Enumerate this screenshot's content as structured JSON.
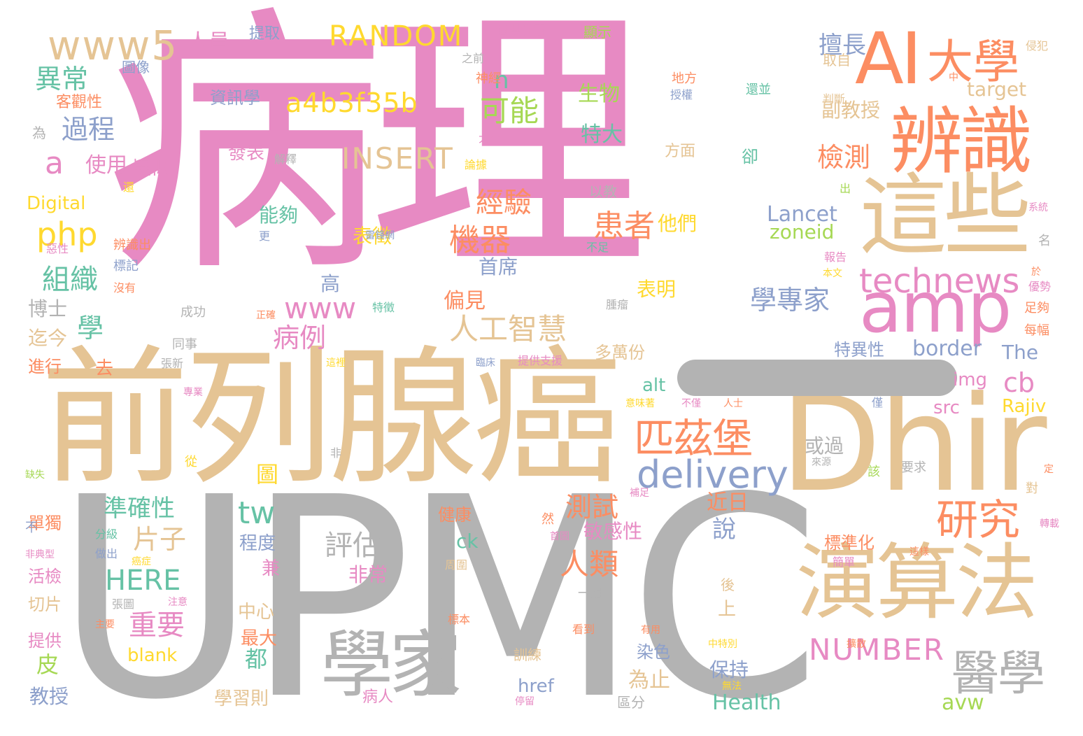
{
  "colors": {
    "pink": "#e78ac3",
    "tan": "#e5c494",
    "gray": "#b3b3b3",
    "orange": "#fc8d62",
    "blue": "#8da0cb",
    "green": "#66c2a5",
    "lime": "#a6d854",
    "yellow": "#ffd92f"
  },
  "words": [
    {
      "text": "病理",
      "color": "pink"
    },
    {
      "text": "UPMC",
      "color": "gray"
    },
    {
      "text": "前列腺癌",
      "color": "tan"
    },
    {
      "text": "Dhir",
      "color": "tan"
    },
    {
      "text": "這些",
      "color": "tan"
    },
    {
      "text": "辨識",
      "color": "orange"
    },
    {
      "text": "AI",
      "color": "orange"
    },
    {
      "text": "大學",
      "color": "orange"
    },
    {
      "text": "amp",
      "color": "pink"
    },
    {
      "text": "演算法",
      "color": "tan"
    },
    {
      "text": "學家",
      "color": "gray"
    },
    {
      "text": "匹茲堡",
      "color": "orange"
    },
    {
      "text": "醫學",
      "color": "gray"
    },
    {
      "text": "研究",
      "color": "orange"
    },
    {
      "text": "delivery",
      "color": "blue"
    },
    {
      "text": "technews",
      "color": "pink"
    },
    {
      "text": "www5",
      "color": "tan"
    },
    {
      "text": "RANDOM",
      "color": "yellow"
    },
    {
      "text": "a4b3f35b",
      "color": "yellow"
    },
    {
      "text": "INSERT",
      "color": "tan"
    },
    {
      "text": "NUMBER",
      "color": "pink"
    },
    {
      "text": "HERE",
      "color": "green"
    },
    {
      "text": "www",
      "color": "pink"
    },
    {
      "text": "php",
      "color": "yellow"
    },
    {
      "text": "人工智慧",
      "color": "tan"
    },
    {
      "text": "學專家",
      "color": "blue"
    },
    {
      "text": "患者",
      "color": "orange"
    },
    {
      "text": "機器",
      "color": "orange"
    },
    {
      "text": "經驗",
      "color": "orange"
    },
    {
      "text": "可能",
      "color": "lime"
    },
    {
      "text": "檢測",
      "color": "orange"
    },
    {
      "text": "擅長",
      "color": "blue"
    },
    {
      "text": "人類",
      "color": "orange"
    },
    {
      "text": "測試",
      "color": "orange"
    },
    {
      "text": "評估",
      "color": "gray"
    },
    {
      "text": "重要",
      "color": "pink"
    },
    {
      "text": "片子",
      "color": "tan"
    },
    {
      "text": "準確性",
      "color": "green"
    },
    {
      "text": "異常",
      "color": "green"
    },
    {
      "text": "過程",
      "color": "blue"
    },
    {
      "text": "組織",
      "color": "green"
    },
    {
      "text": "病例",
      "color": "pink"
    },
    {
      "text": "tw",
      "color": "green"
    },
    {
      "text": "cb",
      "color": "pink"
    },
    {
      "text": "border",
      "color": "blue"
    },
    {
      "text": "Lancet",
      "color": "blue"
    },
    {
      "text": "zoneid",
      "color": "lime"
    },
    {
      "text": "The",
      "color": "blue"
    },
    {
      "text": "Rajiv",
      "color": "yellow"
    },
    {
      "text": "Health",
      "color": "green"
    },
    {
      "text": "avw",
      "color": "lime"
    },
    {
      "text": "target",
      "color": "tan"
    },
    {
      "text": "blank",
      "color": "yellow"
    },
    {
      "text": "Digital",
      "color": "yellow"
    },
    {
      "text": "alt",
      "color": "green"
    },
    {
      "text": "img",
      "color": "pink"
    },
    {
      "text": "src",
      "color": "pink"
    },
    {
      "text": "href",
      "color": "blue"
    },
    {
      "text": "ck",
      "color": "green"
    },
    {
      "text": "a",
      "color": "pink"
    },
    {
      "text": "n",
      "color": "green"
    },
    {
      "text": "學",
      "color": "green"
    },
    {
      "text": "皮",
      "color": "lime"
    },
    {
      "text": "都",
      "color": "green"
    },
    {
      "text": "高",
      "color": "blue"
    },
    {
      "text": "說",
      "color": "blue"
    },
    {
      "text": "圖",
      "color": "yellow"
    },
    {
      "text": "人員",
      "color": "pink"
    },
    {
      "text": "提取",
      "color": "blue"
    },
    {
      "text": "資訊學",
      "color": "blue"
    },
    {
      "text": "生物",
      "color": "lime"
    },
    {
      "text": "特大",
      "color": "green"
    },
    {
      "text": "發表",
      "color": "pink"
    },
    {
      "text": "使用",
      "color": "pink"
    },
    {
      "text": "疑似",
      "color": "pink"
    },
    {
      "text": "能夠",
      "color": "green"
    },
    {
      "text": "表徵",
      "color": "yellow"
    },
    {
      "text": "首席",
      "color": "blue"
    },
    {
      "text": "偏見",
      "color": "orange"
    },
    {
      "text": "表明",
      "color": "yellow"
    },
    {
      "text": "他們",
      "color": "yellow"
    },
    {
      "text": "博士",
      "color": "gray"
    },
    {
      "text": "迄今",
      "color": "tan"
    },
    {
      "text": "進行",
      "color": "orange"
    },
    {
      "text": "去",
      "color": "orange"
    },
    {
      "text": "多萬份",
      "color": "tan"
    },
    {
      "text": "近日",
      "color": "orange"
    },
    {
      "text": "或過",
      "color": "gray"
    },
    {
      "text": "非常",
      "color": "pink"
    },
    {
      "text": "程度",
      "color": "blue"
    },
    {
      "text": "兼",
      "color": "pink"
    },
    {
      "text": "中心",
      "color": "tan"
    },
    {
      "text": "最大",
      "color": "orange"
    },
    {
      "text": "學習則",
      "color": "tan"
    },
    {
      "text": "保持",
      "color": "blue"
    },
    {
      "text": "為止",
      "color": "tan"
    },
    {
      "text": "染色",
      "color": "blue"
    },
    {
      "text": "教授",
      "color": "blue"
    },
    {
      "text": "敏感性",
      "color": "pink"
    },
    {
      "text": "副教授",
      "color": "tan"
    },
    {
      "text": "特異性",
      "color": "blue"
    },
    {
      "text": "標準化",
      "color": "orange"
    },
    {
      "text": "健康",
      "color": "orange"
    },
    {
      "text": "活檢",
      "color": "pink"
    },
    {
      "text": "單獨",
      "color": "orange"
    },
    {
      "text": "切片",
      "color": "tan"
    },
    {
      "text": "提供",
      "color": "pink"
    },
    {
      "text": "客觀性",
      "color": "orange"
    },
    {
      "text": "圖像",
      "color": "blue"
    },
    {
      "text": "上",
      "color": "tan"
    },
    {
      "text": "後",
      "color": "tan"
    },
    {
      "text": "卻",
      "color": "green"
    },
    {
      "text": "方面",
      "color": "tan"
    },
    {
      "text": "顯示",
      "color": "lime"
    },
    {
      "text": "值得注意",
      "color": "pink"
    },
    {
      "text": "侵犯",
      "color": "tan"
    },
    {
      "text": "判斷",
      "color": "tan"
    },
    {
      "text": "取自",
      "color": "tan"
    },
    {
      "text": "地方",
      "color": "orange"
    },
    {
      "text": "授權",
      "color": "blue"
    },
    {
      "text": "還並",
      "color": "green"
    },
    {
      "text": "之前",
      "color": "gray"
    },
    {
      "text": "神經",
      "color": "orange"
    },
    {
      "text": "大小",
      "color": "pink"
    },
    {
      "text": "論據",
      "color": "yellow"
    },
    {
      "text": "解釋",
      "color": "gray"
    },
    {
      "text": "以教",
      "color": "gray"
    },
    {
      "text": "為",
      "color": "gray"
    },
    {
      "text": "還",
      "color": "yellow"
    },
    {
      "text": "辨識出",
      "color": "orange"
    },
    {
      "text": "標記",
      "color": "blue"
    },
    {
      "text": "沒有",
      "color": "orange"
    },
    {
      "text": "惡性",
      "color": "pink"
    },
    {
      "text": "雷鋒網",
      "color": "blue"
    },
    {
      "text": "更",
      "color": "blue"
    },
    {
      "text": "特徵",
      "color": "green"
    },
    {
      "text": "正確",
      "color": "orange"
    },
    {
      "text": "成功",
      "color": "gray"
    },
    {
      "text": "同事",
      "color": "gray"
    },
    {
      "text": "張新",
      "color": "gray"
    },
    {
      "text": "這裡",
      "color": "yellow"
    },
    {
      "text": "臨床",
      "color": "blue"
    },
    {
      "text": "提供支援",
      "color": "pink"
    },
    {
      "text": "腫瘤",
      "color": "gray"
    },
    {
      "text": "不足",
      "color": "green"
    },
    {
      "text": "出",
      "color": "lime"
    },
    {
      "text": "報告",
      "color": "pink"
    },
    {
      "text": "本文",
      "color": "yellow"
    },
    {
      "text": "於",
      "color": "orange"
    },
    {
      "text": "系統",
      "color": "pink"
    },
    {
      "text": "名",
      "color": "gray"
    },
    {
      "text": "優勢",
      "color": "pink"
    },
    {
      "text": "足夠",
      "color": "orange"
    },
    {
      "text": "每幅",
      "color": "orange"
    },
    {
      "text": "中",
      "color": "orange"
    },
    {
      "text": "專業",
      "color": "pink"
    },
    {
      "text": "意味著",
      "color": "yellow"
    },
    {
      "text": "不僅",
      "color": "pink"
    },
    {
      "text": "人士",
      "color": "orange"
    },
    {
      "text": "非",
      "color": "gray"
    },
    {
      "text": "從",
      "color": "yellow"
    },
    {
      "text": "缺失",
      "color": "lime"
    },
    {
      "text": "不",
      "color": "blue"
    },
    {
      "text": "分級",
      "color": "green"
    },
    {
      "text": "做出",
      "color": "blue"
    },
    {
      "text": "癌症",
      "color": "yellow"
    },
    {
      "text": "非典型",
      "color": "pink"
    },
    {
      "text": "然",
      "color": "orange"
    },
    {
      "text": "首圖",
      "color": "pink"
    },
    {
      "text": "周圍",
      "color": "tan"
    },
    {
      "text": "一組",
      "color": "gray"
    },
    {
      "text": "張圖",
      "color": "gray"
    },
    {
      "text": "注意",
      "color": "pink"
    },
    {
      "text": "主要",
      "color": "orange"
    },
    {
      "text": "標本",
      "color": "orange"
    },
    {
      "text": "看到",
      "color": "orange"
    },
    {
      "text": "有用",
      "color": "orange"
    },
    {
      "text": "訓練",
      "color": "tan"
    },
    {
      "text": "停留",
      "color": "pink"
    },
    {
      "text": "病人",
      "color": "pink"
    },
    {
      "text": "區分",
      "color": "gray"
    },
    {
      "text": "無法",
      "color": "yellow"
    },
    {
      "text": "中特別",
      "color": "yellow"
    },
    {
      "text": "擴散",
      "color": "orange"
    },
    {
      "text": "簡單",
      "color": "pink"
    },
    {
      "text": "這樣",
      "color": "orange"
    },
    {
      "text": "轉載",
      "color": "pink"
    },
    {
      "text": "對",
      "color": "tan"
    },
    {
      "text": "定",
      "color": "orange"
    },
    {
      "text": "要求",
      "color": "gray"
    },
    {
      "text": "來源",
      "color": "gray"
    },
    {
      "text": "該",
      "color": "lime"
    },
    {
      "text": "補足",
      "color": "pink"
    },
    {
      "text": "僅",
      "color": "blue"
    }
  ]
}
